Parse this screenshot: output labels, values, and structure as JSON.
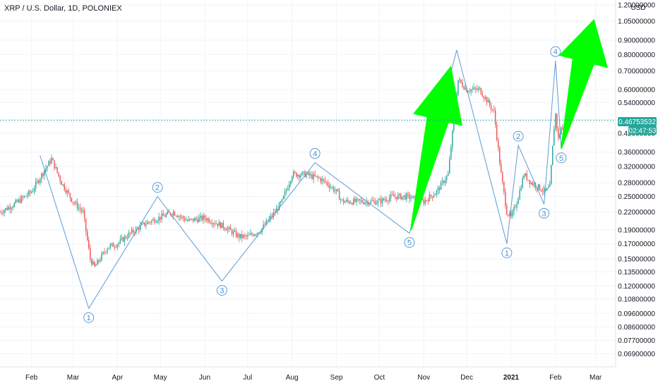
{
  "header": {
    "title": "XRP / U.S. Dollar, 1D, POLONIEX"
  },
  "colors": {
    "up": "#26a69a",
    "down": "#ef5350",
    "wave": "#5b9bd5",
    "arrow": "#00ff00",
    "current_price_line": "#26a69a",
    "grid": "#f0f3fa"
  },
  "chart_data": {
    "type": "line",
    "title": "XRP / U.S. Dollar, 1D, POLONIEX",
    "xlabel": "",
    "ylabel": "",
    "y_scale": "log",
    "currency": "USD",
    "ylim": [
      0.062,
      1.25
    ],
    "xlim": [
      "2020-01-10",
      "2021-03-15"
    ],
    "grid": true,
    "y_ticks": [
      "1.20000000",
      "1.05000000",
      "0.90000000",
      "0.80000000",
      "0.70000000",
      "0.60000000",
      "0.54000000",
      "0.46000000",
      "0.42000000",
      "0.36000000",
      "0.32000000",
      "0.28000000",
      "0.25000000",
      "0.22000000",
      "0.19000000",
      "0.17000000",
      "0.15000000",
      "0.13500000",
      "0.12000000",
      "0.10800000",
      "0.09600000",
      "0.08600000",
      "0.07700000",
      "0.06900000"
    ],
    "x_ticks": [
      {
        "label": "Feb",
        "date": "2020-02-01"
      },
      {
        "label": "Mar",
        "date": "2020-03-01"
      },
      {
        "label": "Apr",
        "date": "2020-04-01"
      },
      {
        "label": "May",
        "date": "2020-05-01"
      },
      {
        "label": "Jun",
        "date": "2020-06-01"
      },
      {
        "label": "Jul",
        "date": "2020-07-01"
      },
      {
        "label": "Aug",
        "date": "2020-08-01"
      },
      {
        "label": "Sep",
        "date": "2020-09-01"
      },
      {
        "label": "Oct",
        "date": "2020-10-01"
      },
      {
        "label": "Nov",
        "date": "2020-11-01"
      },
      {
        "label": "Dec",
        "date": "2020-12-01"
      },
      {
        "label": "2021",
        "date": "2021-01-01"
      },
      {
        "label": "Feb",
        "date": "2021-02-01"
      },
      {
        "label": "Mar",
        "date": "2021-03-01"
      }
    ],
    "current_price": {
      "value": 0.46753532,
      "label": "0.46753532",
      "countdown": "02:47:53"
    },
    "series": [
      {
        "type": "line",
        "x": [
          "2020-01-10",
          "2020-01-20",
          "2020-02-01",
          "2020-02-10",
          "2020-02-15",
          "2020-02-22",
          "2020-03-01",
          "2020-03-08",
          "2020-03-13",
          "2020-03-16",
          "2020-03-25",
          "2020-04-01",
          "2020-04-10",
          "2020-04-20",
          "2020-04-30",
          "2020-05-10",
          "2020-05-20",
          "2020-06-01",
          "2020-06-10",
          "2020-06-15",
          "2020-06-25",
          "2020-07-01",
          "2020-07-10",
          "2020-07-20",
          "2020-07-25",
          "2020-08-01",
          "2020-08-10",
          "2020-08-20",
          "2020-08-25",
          "2020-09-01",
          "2020-09-05",
          "2020-09-15",
          "2020-09-25",
          "2020-10-01",
          "2020-10-10",
          "2020-10-20",
          "2020-11-01",
          "2020-11-10",
          "2020-11-18",
          "2020-11-22",
          "2020-11-25",
          "2020-12-01",
          "2020-12-10",
          "2020-12-15",
          "2020-12-20",
          "2020-12-25",
          "2020-12-29",
          "2021-01-01",
          "2021-01-05",
          "2021-01-10",
          "2021-01-15",
          "2021-01-20",
          "2021-01-25",
          "2021-01-28",
          "2021-01-31",
          "2021-02-01",
          "2021-02-03",
          "2021-02-05",
          "2021-02-08",
          "2021-02-10"
        ],
        "values": [
          0.22,
          0.235,
          0.26,
          0.31,
          0.34,
          0.28,
          0.24,
          0.22,
          0.15,
          0.14,
          0.165,
          0.17,
          0.185,
          0.2,
          0.21,
          0.22,
          0.205,
          0.21,
          0.2,
          0.195,
          0.18,
          0.18,
          0.19,
          0.22,
          0.24,
          0.3,
          0.3,
          0.29,
          0.28,
          0.26,
          0.24,
          0.24,
          0.24,
          0.24,
          0.25,
          0.25,
          0.24,
          0.26,
          0.3,
          0.47,
          0.65,
          0.6,
          0.6,
          0.55,
          0.5,
          0.3,
          0.22,
          0.21,
          0.24,
          0.3,
          0.28,
          0.27,
          0.26,
          0.27,
          0.44,
          0.49,
          0.4,
          0.44,
          0.42,
          0.46
        ]
      }
    ],
    "wave_points": [
      {
        "label": "1",
        "date": "2020-03-12",
        "value": 0.1
      },
      {
        "label": "2",
        "date": "2020-04-29",
        "value": 0.25
      },
      {
        "label": "3",
        "date": "2020-06-13",
        "value": 0.125
      },
      {
        "label": "4",
        "date": "2020-08-17",
        "value": 0.33
      },
      {
        "label": "5",
        "date": "2020-10-22",
        "value": 0.185
      },
      {
        "label": "1",
        "date": "2020-12-29",
        "value": 0.17
      },
      {
        "label": "2",
        "date": "2021-01-06",
        "value": 0.38
      },
      {
        "label": "3",
        "date": "2021-01-24",
        "value": 0.235
      },
      {
        "label": "4",
        "date": "2021-02-01",
        "value": 0.76
      },
      {
        "label": "5",
        "date": "2021-02-05",
        "value": 0.37
      }
    ],
    "wave_path": [
      {
        "date": "2020-02-07",
        "value": 0.35
      },
      {
        "date": "2020-03-12",
        "value": 0.1
      },
      {
        "date": "2020-04-29",
        "value": 0.25
      },
      {
        "date": "2020-06-13",
        "value": 0.125
      },
      {
        "date": "2020-08-17",
        "value": 0.33
      },
      {
        "date": "2020-10-22",
        "value": 0.185
      },
      {
        "date": "2020-11-24",
        "value": 0.83
      },
      {
        "date": "2020-12-29",
        "value": 0.17
      },
      {
        "date": "2021-01-06",
        "value": 0.38
      },
      {
        "date": "2021-01-24",
        "value": 0.235
      },
      {
        "date": "2021-02-01",
        "value": 0.76
      },
      {
        "date": "2021-02-05",
        "value": 0.37
      }
    ],
    "arrows": [
      {
        "name": "arrow-1",
        "from": {
          "date": "2020-10-23",
          "value": 0.19
        },
        "to": {
          "date": "2020-11-20",
          "value": 0.73
        }
      },
      {
        "name": "arrow-2",
        "from": {
          "date": "2021-02-05",
          "value": 0.37
        },
        "to": {
          "date": "2021-02-28",
          "value": 1.07
        }
      }
    ]
  }
}
